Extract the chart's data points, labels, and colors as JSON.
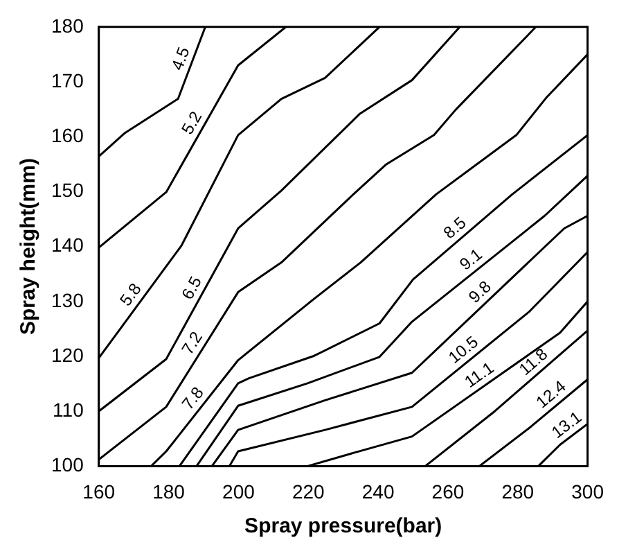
{
  "chart_data": {
    "type": "line",
    "xlabel": "Spray pressure(bar)",
    "ylabel": "Spray height(mm)",
    "xlim": [
      160,
      300
    ],
    "ylim": [
      100,
      180
    ],
    "xticks": [
      160,
      180,
      200,
      220,
      240,
      260,
      280,
      300
    ],
    "yticks": [
      100,
      110,
      120,
      130,
      140,
      150,
      160,
      170,
      180
    ],
    "grid": false,
    "legend": false,
    "marker": "none",
    "line_style": "solid",
    "series": [
      {
        "name": "4.5",
        "color": "#000000",
        "x": [
          160,
          167.5,
          182.7,
          190.5
        ],
        "values": [
          156.4,
          160.7,
          166.9,
          180
        ]
      },
      {
        "name": "5.2",
        "color": "#000000",
        "x": [
          160,
          179.3,
          199.9,
          213.6
        ],
        "values": [
          139.8,
          149.9,
          173,
          180
        ]
      },
      {
        "name": "5.8",
        "color": "#000000",
        "x": [
          160,
          183.7,
          199.9,
          212.3,
          224.8,
          240.4
        ],
        "values": [
          119.7,
          140.2,
          160.3,
          166.9,
          170.7,
          180
        ]
      },
      {
        "name": "6.5",
        "color": "#000000",
        "x": [
          160,
          179.3,
          199.9,
          212.3,
          234.8,
          249.7,
          263.4
        ],
        "values": [
          110,
          119.5,
          143.3,
          150.2,
          164.2,
          170.3,
          180
        ]
      },
      {
        "name": "7.2",
        "color": "#000000",
        "x": [
          160,
          179.3,
          199.9,
          212.3,
          232.9,
          242.2,
          256,
          262.2,
          285.2
        ],
        "values": [
          101.2,
          110.8,
          131.7,
          137.1,
          149.5,
          154.9,
          160.3,
          164.9,
          180
        ]
      },
      {
        "name": "7.8",
        "color": "#000000",
        "x": [
          175,
          179.3,
          199.9,
          221.7,
          235,
          256.6,
          279.6,
          288.3,
          300
        ],
        "values": [
          100,
          102.7,
          119.3,
          130.5,
          137.1,
          149.5,
          160.3,
          167.2,
          175
        ]
      },
      {
        "name": "8.5",
        "color": "#000000",
        "x": [
          183.1,
          199.9,
          203,
          221.7,
          240.4,
          250,
          278.4,
          300
        ],
        "values": [
          100,
          115.1,
          116,
          120.1,
          126,
          134,
          149.5,
          160.3
        ]
      },
      {
        "name": "9.1",
        "color": "#000000",
        "x": [
          188,
          199.9,
          219.8,
          240.4,
          249.7,
          287.7,
          300
        ],
        "values": [
          100,
          111,
          115.1,
          119.9,
          126.3,
          145.6,
          152.9
        ]
      },
      {
        "name": "9.8",
        "color": "#000000",
        "x": [
          192.4,
          199.9,
          224.8,
          249.7,
          293.3,
          300
        ],
        "values": [
          100,
          106.6,
          112,
          117,
          143.3,
          145.6
        ]
      },
      {
        "name": "10.5",
        "color": "#000000",
        "x": [
          197.4,
          199.9,
          224.8,
          249.7,
          283.4,
          300
        ],
        "values": [
          100,
          102.7,
          106.6,
          110.8,
          128.2,
          139
        ]
      },
      {
        "name": "11.1",
        "color": "#000000",
        "x": [
          219.8,
          232.3,
          249.7,
          292.1,
          300
        ],
        "values": [
          100,
          102.3,
          105.4,
          124.3,
          130
        ]
      },
      {
        "name": "11.8",
        "color": "#000000",
        "x": [
          253.5,
          273.4,
          300
        ],
        "values": [
          100,
          110,
          124.7
        ]
      },
      {
        "name": "12.4",
        "color": "#000000",
        "x": [
          269,
          283.4,
          300
        ],
        "values": [
          100,
          107,
          115.8
        ]
      },
      {
        "name": "13.1",
        "color": "#000000",
        "x": [
          285.9,
          292.1,
          300
        ],
        "values": [
          100,
          103.9,
          107.7
        ]
      }
    ]
  }
}
